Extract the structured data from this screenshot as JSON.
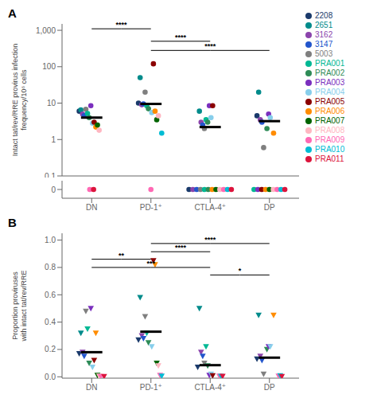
{
  "chart_data": [
    {
      "type": "scatter",
      "title": "A",
      "ylabel": "Intact tat/rev/RRE provirus infection\nfrequency/10⁶ cells",
      "categories": [
        "DN",
        "PD-1⁺",
        "CTLA-4⁺",
        "DP"
      ],
      "log": "y",
      "ylim": [
        0.1,
        1500
      ],
      "yticks": [
        0.1,
        1,
        10,
        100,
        {
          "value": 1000,
          "label": "1,000"
        }
      ],
      "marker": "circle",
      "legend": "right",
      "series": [
        {
          "name": "2208",
          "color": "#1a3a6b",
          "values": [
            6.0,
            10.0,
            null,
            4.5
          ]
        },
        {
          "name": "2651",
          "color": "#008B8B",
          "values": [
            6.5,
            50.0,
            6.0,
            20.0
          ]
        },
        {
          "name": "3162",
          "color": "#8b44ac",
          "values": [
            5.0,
            9.0,
            3.0,
            3.5
          ]
        },
        {
          "name": "3147",
          "color": "#2255cc",
          "values": [
            4.5,
            9.5,
            2.5,
            3.0
          ]
        },
        {
          "name": "5003",
          "color": "#7f7f7f",
          "values": [
            6.8,
            20.0,
            2.0,
            0.6
          ]
        },
        {
          "name": "PRA001",
          "color": "#00b894",
          "values": [
            5.2,
            8.5,
            3.5,
            null
          ]
        },
        {
          "name": "PRA002",
          "color": "#2e8b57",
          "values": [
            4.0,
            7.0,
            3.0,
            2.0
          ]
        },
        {
          "name": "PRA003",
          "color": "#7b2fbe",
          "values": [
            8.5,
            null,
            8.5,
            5.0
          ]
        },
        {
          "name": "PRA004",
          "color": "#87CEEB",
          "values": [
            2.8,
            5.5,
            4.0,
            4.0
          ]
        },
        {
          "name": "PRA005",
          "color": "#8B0000",
          "values": [
            3.0,
            120.0,
            8.5,
            null
          ]
        },
        {
          "name": "PRA006",
          "color": "#FF8C00",
          "values": [
            2.2,
            6.0,
            null,
            1.5
          ]
        },
        {
          "name": "PRA007",
          "color": "#006400",
          "values": [
            2.5,
            3.5,
            null,
            null
          ]
        },
        {
          "name": "PRA008",
          "color": "#ffb6c1",
          "values": [
            1.8,
            4.5,
            null,
            null
          ]
        },
        {
          "name": "PRA009",
          "color": "#ff69b4",
          "values": [
            null,
            null,
            null,
            null
          ]
        },
        {
          "name": "PRA010",
          "color": "#00bcd4",
          "values": [
            null,
            1.5,
            null,
            null
          ]
        },
        {
          "name": "PRA011",
          "color": "#dc143c",
          "values": [
            null,
            null,
            null,
            null
          ]
        }
      ],
      "medians": [
        4.0,
        9.5,
        2.2,
        3.2
      ],
      "zero_tick": 0,
      "zeros": [
        [
          "PRA009",
          "PRA011"
        ],
        [
          "PRA009"
        ],
        [
          "2208",
          "3162",
          "3147",
          "5003",
          "PRA001",
          "PRA002",
          "PRA006",
          "PRA007",
          "PRA008",
          "PRA009",
          "PRA010",
          "PRA011"
        ],
        [
          "PRA001",
          "PRA003",
          "PRA005",
          "PRA006",
          "PRA007",
          "PRA008",
          "PRA009",
          "PRA010",
          "PRA011"
        ]
      ],
      "annotations": [
        {
          "text": "****",
          "x": [
            "DN",
            "PD-1⁺"
          ],
          "y": 1100
        },
        {
          "text": "****",
          "x": [
            "PD-1⁺",
            "CTLA-4⁺"
          ],
          "y": 500
        },
        {
          "text": "****",
          "x": [
            "PD-1⁺",
            "DP"
          ],
          "y": 280
        }
      ]
    },
    {
      "type": "scatter",
      "title": "B",
      "ylabel": "Proportion proviruses\nwith intact tat/rev/RRE",
      "categories": [
        "DN",
        "PD-1⁺",
        "CTLA-4⁺",
        "DP"
      ],
      "ylim": [
        -0.01,
        1.05
      ],
      "yticks": [
        {
          "value": 0,
          "label": "0.0"
        },
        0.2,
        0.4,
        0.6,
        0.8,
        {
          "value": 1,
          "label": "1.0"
        }
      ],
      "marker": "triangle_down",
      "series": [
        {
          "name": "2208",
          "color": "#1a3a6b",
          "values": [
            0.17,
            0.27,
            0.07,
            0.13
          ]
        },
        {
          "name": "2651",
          "color": "#008B8B",
          "values": [
            0.32,
            0.58,
            0.5,
            0.45
          ]
        },
        {
          "name": "3162",
          "color": "#8b44ac",
          "values": [
            0.18,
            0.3,
            0.18,
            0.15
          ]
        },
        {
          "name": "3147",
          "color": "#2255cc",
          "values": [
            0.15,
            0.28,
            0.15,
            0.12
          ]
        },
        {
          "name": "5003",
          "color": "#7f7f7f",
          "values": [
            0.48,
            0.44,
            0.1,
            0.02
          ]
        },
        {
          "name": "PRA001",
          "color": "#00b894",
          "values": [
            0.35,
            0.32,
            0.22,
            null
          ]
        },
        {
          "name": "PRA002",
          "color": "#2e8b57",
          "values": [
            0.1,
            0.25,
            0.08,
            0.2
          ]
        },
        {
          "name": "PRA003",
          "color": "#7b2fbe",
          "values": [
            0.5,
            null,
            0.01,
            0.22
          ]
        },
        {
          "name": "PRA004",
          "color": "#87CEEB",
          "values": [
            0.07,
            0.22,
            0.02,
            0.22
          ]
        },
        {
          "name": "PRA005",
          "color": "#8B0000",
          "values": [
            0.12,
            0.85,
            0.008,
            null
          ]
        },
        {
          "name": "PRA006",
          "color": "#FF8C00",
          "values": [
            0.32,
            0.82,
            null,
            0.45
          ]
        },
        {
          "name": "PRA007",
          "color": "#006400",
          "values": [
            0.01,
            0.1,
            null,
            null
          ]
        },
        {
          "name": "PRA008",
          "color": "#ffb6c1",
          "values": [
            0.005,
            0.08,
            null,
            null
          ]
        },
        {
          "name": "PRA009",
          "color": "#ff69b4",
          "values": [
            0.002,
            0.01,
            0.005,
            0.005
          ]
        },
        {
          "name": "PRA010",
          "color": "#00bcd4",
          "values": [
            null,
            0.005,
            0.004,
            0.008
          ]
        },
        {
          "name": "PRA011",
          "color": "#dc143c",
          "values": [
            0.002,
            null,
            0.003,
            0.002
          ]
        }
      ],
      "medians": [
        0.18,
        0.33,
        0.085,
        0.14
      ],
      "annotations": [
        {
          "text": "****",
          "x": [
            "PD-1⁺",
            "DP"
          ],
          "y": 0.975
        },
        {
          "text": "****",
          "x": [
            "PD-1⁺",
            "CTLA-4⁺"
          ],
          "y": 0.915
        },
        {
          "text": "**",
          "x": [
            "DN",
            "PD-1⁺"
          ],
          "y": 0.86
        },
        {
          "text": "***",
          "x": [
            "DN",
            "CTLA-4⁺"
          ],
          "y": 0.8
        },
        {
          "text": "*",
          "x": [
            "CTLA-4⁺",
            "DP"
          ],
          "y": 0.745
        }
      ]
    }
  ]
}
